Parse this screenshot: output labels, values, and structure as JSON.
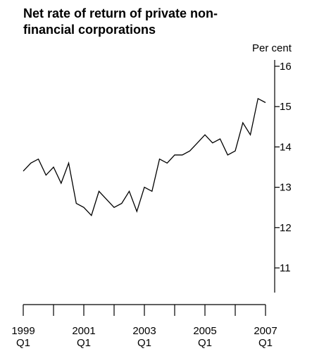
{
  "chart_data": {
    "type": "line",
    "title": "Net rate of return of private non-financial corporations",
    "ylabel": "Per cent",
    "ylim": [
      10.3,
      16.2
    ],
    "y_ticks": [
      11,
      12,
      13,
      14,
      15,
      16
    ],
    "x_ticks": [
      {
        "year": "1999",
        "quarter": "Q1"
      },
      {
        "year": "2001",
        "quarter": "Q1"
      },
      {
        "year": "2003",
        "quarter": "Q1"
      },
      {
        "year": "2005",
        "quarter": "Q1"
      },
      {
        "year": "2007",
        "quarter": "Q1"
      }
    ],
    "x_range": [
      "1999 Q1",
      "2007 Q1"
    ],
    "y_axis_position": "right",
    "grid": false,
    "series": [
      {
        "x": [
          "1999 Q1",
          "1999 Q2",
          "1999 Q3",
          "1999 Q4",
          "2000 Q1",
          "2000 Q2",
          "2000 Q3",
          "2000 Q4",
          "2001 Q1",
          "2001 Q2",
          "2001 Q3",
          "2001 Q4",
          "2002 Q1",
          "2002 Q2",
          "2002 Q3",
          "2002 Q4",
          "2003 Q1",
          "2003 Q2",
          "2003 Q3",
          "2003 Q4",
          "2004 Q1",
          "2004 Q2",
          "2004 Q3",
          "2004 Q4",
          "2005 Q1",
          "2005 Q2",
          "2005 Q3",
          "2005 Q4",
          "2006 Q1",
          "2006 Q2",
          "2006 Q3",
          "2006 Q4",
          "2007 Q1"
        ],
        "values": [
          13.4,
          13.6,
          13.7,
          13.3,
          13.5,
          13.1,
          13.6,
          12.6,
          12.5,
          12.3,
          12.9,
          12.7,
          12.5,
          12.6,
          12.9,
          12.4,
          13.0,
          12.9,
          13.7,
          13.6,
          13.8,
          13.8,
          13.9,
          14.1,
          14.3,
          14.1,
          14.2,
          13.8,
          13.9,
          14.6,
          14.3,
          15.2,
          15.1
        ],
        "color": "#000000"
      }
    ]
  }
}
